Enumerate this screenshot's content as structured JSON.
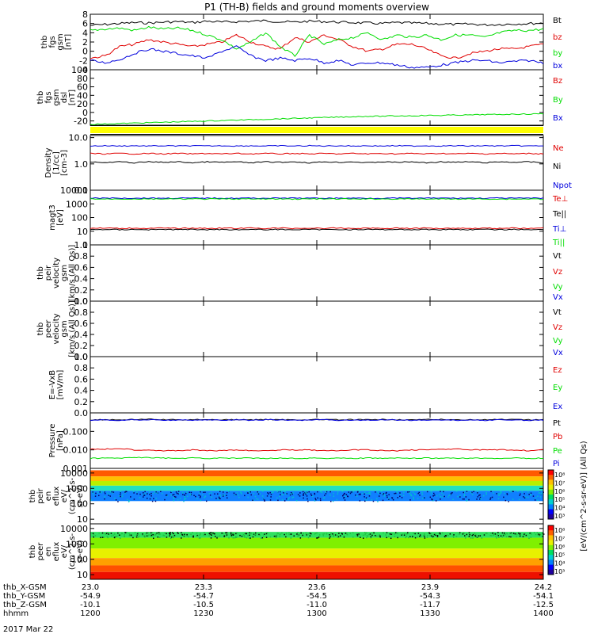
{
  "title": "P1 (TH-B) fields and ground moments overview",
  "date_label": "2017 Mar 22",
  "colors": {
    "black": "#000000",
    "red": "#e00000",
    "green": "#00dd00",
    "blue": "#0000dd",
    "yellow": "#ffff00",
    "frame": "#000000"
  },
  "chart_data": [
    {
      "id": "fgs",
      "type": "line",
      "ylabel": [
        "thb",
        "fgs",
        "gsm",
        "[nT]"
      ],
      "ylim": [
        -4,
        8
      ],
      "yticks": [
        "8",
        "6",
        "4",
        "2",
        "0",
        "-2",
        "-4"
      ],
      "ytick_values": [
        8,
        6,
        4,
        2,
        0,
        -2,
        -4
      ],
      "legend": [
        {
          "name": "Bt",
          "color": "#000000"
        },
        {
          "name": "bz",
          "color": "#e00000"
        },
        {
          "name": "by",
          "color": "#00dd00"
        },
        {
          "name": "bx",
          "color": "#0000dd"
        }
      ],
      "series": [
        {
          "name": "Bt",
          "color": "#000000",
          "values": [
            5.6,
            5.8,
            6.0,
            6.2,
            6.1,
            6.3,
            6.4,
            6.2,
            6.5,
            6.3,
            6.4,
            6.5,
            6.6,
            6.4,
            6.3,
            6.5,
            6.4,
            6.3,
            6.2,
            6.1,
            6.0,
            6.2,
            6.1,
            6.0,
            5.9,
            5.8,
            5.9,
            5.7,
            5.8,
            5.9,
            6.0,
            6.1
          ]
        },
        {
          "name": "bz",
          "color": "#e00000",
          "values": [
            -1.5,
            -1.0,
            1.0,
            1.5,
            2.5,
            2.0,
            1.5,
            1.0,
            1.5,
            2.0,
            3.5,
            2.0,
            1.0,
            0.5,
            3.0,
            2.0,
            3.5,
            2.5,
            1.0,
            0.0,
            0.5,
            1.5,
            1.5,
            0.5,
            -1.0,
            -1.5,
            -0.5,
            0.0,
            0.5,
            0.5,
            1.0,
            1.5
          ]
        },
        {
          "name": "by",
          "color": "#00dd00",
          "values": [
            4.5,
            4.8,
            5.0,
            4.5,
            5.2,
            4.8,
            5.0,
            4.5,
            3.5,
            2.5,
            0.5,
            2.0,
            4.0,
            1.0,
            -1.0,
            3.5,
            1.5,
            2.5,
            3.0,
            4.0,
            2.5,
            3.5,
            3.0,
            3.5,
            2.5,
            3.5,
            3.5,
            3.0,
            4.0,
            4.5,
            4.5,
            4.8
          ]
        },
        {
          "name": "bx",
          "color": "#0000dd",
          "values": [
            -2.0,
            -2.5,
            -1.8,
            -0.5,
            0.5,
            0.0,
            -0.5,
            -1.0,
            -1.5,
            0.0,
            1.0,
            -1.0,
            -2.0,
            -1.5,
            -2.0,
            -1.5,
            -2.5,
            -2.0,
            -3.0,
            -2.5,
            -2.5,
            -3.0,
            -3.5,
            -3.5,
            -3.0,
            -2.5,
            -2.0,
            -2.0,
            -2.5,
            -2.2,
            -2.0,
            -2.5
          ]
        }
      ]
    },
    {
      "id": "fgs-dsl",
      "type": "line",
      "ylabel": [
        "thb",
        "fgs",
        "gsm",
        "dsl",
        "[nT]"
      ],
      "ylim": [
        -30,
        100
      ],
      "yticks": [
        "100",
        "80",
        "60",
        "40",
        "20",
        "0",
        "-20"
      ],
      "ytick_values": [
        100,
        80,
        60,
        40,
        20,
        0,
        -20
      ],
      "legend": [
        {
          "name": "Bz",
          "color": "#e00000"
        },
        {
          "name": "By",
          "color": "#00dd00"
        },
        {
          "name": "Bx",
          "color": "#0000dd"
        }
      ],
      "series": [
        {
          "name": "By",
          "color": "#00dd00",
          "values": [
            -28,
            -27,
            -26,
            -25,
            -24,
            -23,
            -22,
            -21,
            -20,
            -19,
            -18,
            -17,
            -16,
            -15,
            -14,
            -13,
            -12,
            -11,
            -10,
            -9,
            -9,
            -8,
            -8,
            -7,
            -7,
            -6,
            -6,
            -5,
            -5,
            -4,
            -4,
            -3
          ]
        }
      ]
    },
    {
      "id": "density",
      "type": "line",
      "ylabel": [
        "Density",
        "[1/cc]",
        "[cm-3]"
      ],
      "yscale": "log",
      "ylim": [
        0.1,
        12
      ],
      "yticks": [
        "10.0",
        "1.0",
        "0.1"
      ],
      "ytick_values": [
        10,
        1,
        0.1
      ],
      "legend": [
        {
          "name": "Ne",
          "color": "#e00000"
        },
        {
          "name": "Ni",
          "color": "#000000"
        },
        {
          "name": "Npot",
          "color": "#0000dd"
        }
      ],
      "series": [
        {
          "name": "Npot",
          "color": "#0000dd",
          "values": [
            4.8,
            4.9,
            4.8,
            4.9,
            4.8,
            4.9,
            4.8,
            4.9,
            4.8,
            4.9,
            4.8,
            4.9,
            4.8,
            4.9,
            4.8,
            4.9,
            4.8,
            4.9,
            4.8,
            4.9,
            4.8,
            4.9,
            4.8,
            4.9,
            4.8,
            4.9,
            4.8,
            4.9,
            4.8,
            4.9,
            4.8,
            4.9
          ]
        },
        {
          "name": "Ne",
          "color": "#e00000",
          "values": [
            2.5,
            2.4,
            2.5,
            2.4,
            2.5,
            2.4,
            2.5,
            2.4,
            2.5,
            2.4,
            2.5,
            2.4,
            2.5,
            2.4,
            2.5,
            2.4,
            2.5,
            2.4,
            2.5,
            2.4,
            2.5,
            2.4,
            2.5,
            2.4,
            2.5,
            2.4,
            2.5,
            2.4,
            2.5,
            2.4,
            2.5,
            2.4
          ]
        },
        {
          "name": "Ni",
          "color": "#000000",
          "values": [
            1.2,
            1.1,
            1.2,
            1.1,
            1.2,
            1.15,
            1.2,
            1.1,
            1.2,
            1.15,
            1.2,
            1.1,
            1.2,
            1.15,
            1.2,
            1.1,
            1.2,
            1.15,
            1.2,
            1.1,
            1.2,
            1.15,
            1.2,
            1.1,
            1.2,
            1.15,
            1.2,
            1.1,
            1.2,
            1.15,
            1.2,
            1.1
          ]
        }
      ]
    },
    {
      "id": "temperature",
      "type": "line",
      "ylabel": [
        "magt3",
        "[eV]"
      ],
      "yscale": "log",
      "ylim": [
        1,
        10000
      ],
      "yticks": [
        "10000",
        "1000",
        "100",
        "10",
        "1"
      ],
      "ytick_values": [
        10000,
        1000,
        100,
        10,
        1
      ],
      "legend": [
        {
          "name": "Te⊥",
          "color": "#e00000"
        },
        {
          "name": "Te||",
          "color": "#000000"
        },
        {
          "name": "Ti⊥",
          "color": "#0000dd"
        },
        {
          "name": "Ti||",
          "color": "#00dd00"
        }
      ],
      "series": [
        {
          "name": "Ti⊥",
          "color": "#0000dd",
          "values": [
            2600,
            2650,
            2600,
            2620,
            2650,
            2600,
            2630,
            2600,
            2650,
            2620,
            2600,
            2640,
            2600,
            2620,
            2650,
            2600,
            2630,
            2600,
            2650,
            2620,
            2600,
            2640,
            2600,
            2620,
            2650,
            2600,
            2630,
            2600,
            2650,
            2620,
            2600,
            2640
          ]
        },
        {
          "name": "Ti||",
          "color": "#00dd00",
          "values": [
            2300,
            2250,
            2300,
            2280,
            2250,
            2300,
            2270,
            2300,
            2250,
            2280,
            2300,
            2260,
            2300,
            2280,
            2250,
            2300,
            2270,
            2300,
            2250,
            2280,
            2300,
            2260,
            2300,
            2280,
            2250,
            2300,
            2270,
            2300,
            2250,
            2280,
            2300,
            2260
          ]
        },
        {
          "name": "Te⊥",
          "color": "#e00000",
          "values": [
            16,
            17,
            16,
            17,
            16,
            17,
            16,
            17,
            16,
            17,
            16,
            17,
            16,
            17,
            16,
            17,
            16,
            17,
            16,
            17,
            16,
            17,
            16,
            17,
            16,
            17,
            16,
            17,
            16,
            17,
            16,
            17
          ]
        },
        {
          "name": "Te||",
          "color": "#000000",
          "values": [
            13,
            13.5,
            13,
            13.5,
            13,
            13.5,
            13,
            13.5,
            13,
            13.5,
            13,
            13.5,
            13,
            13.5,
            13,
            13.5,
            13,
            13.5,
            13,
            13.5,
            13,
            13.5,
            13,
            13.5,
            13,
            13.5,
            13,
            13.5,
            13,
            13.5,
            13,
            13.5
          ]
        }
      ]
    },
    {
      "id": "peir-velocity",
      "type": "line",
      "ylabel": [
        "thb",
        "peir",
        "velocity",
        "gsm",
        "[km/s (All Qs)]"
      ],
      "ylim": [
        0,
        1
      ],
      "yticks": [
        "1.0",
        "0.8",
        "0.6",
        "0.4",
        "0.2",
        "0.0"
      ],
      "ytick_values": [
        1,
        0.8,
        0.6,
        0.4,
        0.2,
        0
      ],
      "legend": [
        {
          "name": "Vt",
          "color": "#000000"
        },
        {
          "name": "Vz",
          "color": "#e00000"
        },
        {
          "name": "Vy",
          "color": "#00dd00"
        },
        {
          "name": "Vx",
          "color": "#0000dd"
        }
      ],
      "series": []
    },
    {
      "id": "peer-velocity",
      "type": "line",
      "ylabel": [
        "thb",
        "peer",
        "velocity",
        "gsm",
        "[km/s (All Qs)]"
      ],
      "ylim": [
        0,
        1
      ],
      "yticks": [
        "1.0",
        "0.8",
        "0.6",
        "0.4",
        "0.2",
        "0.0"
      ],
      "ytick_values": [
        1,
        0.8,
        0.6,
        0.4,
        0.2,
        0
      ],
      "legend": [
        {
          "name": "Vt",
          "color": "#000000"
        },
        {
          "name": "Vz",
          "color": "#e00000"
        },
        {
          "name": "Vy",
          "color": "#00dd00"
        },
        {
          "name": "Vx",
          "color": "#0000dd"
        }
      ],
      "series": []
    },
    {
      "id": "efield",
      "type": "line",
      "ylabel": [
        "E=-VxB",
        "[mV/m]"
      ],
      "ylim": [
        0,
        1
      ],
      "yticks": [
        "1.0",
        "0.8",
        "0.6",
        "0.4",
        "0.2",
        "0.0"
      ],
      "ytick_values": [
        1,
        0.8,
        0.6,
        0.4,
        0.2,
        0
      ],
      "legend": [
        {
          "name": "Ez",
          "color": "#e00000"
        },
        {
          "name": "Ey",
          "color": "#00dd00"
        },
        {
          "name": "Ex",
          "color": "#0000dd"
        }
      ],
      "series": []
    },
    {
      "id": "pressure",
      "type": "line",
      "ylabel": [
        "Pressure",
        "[nPa]"
      ],
      "yscale": "log",
      "ylim": [
        0.001,
        1
      ],
      "yticks": [
        "0.100",
        "0.010",
        "0.001"
      ],
      "ytick_values": [
        0.1,
        0.01,
        0.001
      ],
      "legend": [
        {
          "name": "Pt",
          "color": "#000000"
        },
        {
          "name": "Pb",
          "color": "#e00000"
        },
        {
          "name": "Pe",
          "color": "#00dd00"
        },
        {
          "name": "Pi",
          "color": "#0000dd"
        }
      ],
      "series": [
        {
          "name": "Pt",
          "color": "#000000",
          "values": [
            0.42,
            0.43,
            0.42,
            0.44,
            0.45,
            0.43,
            0.42,
            0.43,
            0.44,
            0.42,
            0.43,
            0.42,
            0.44,
            0.43,
            0.42,
            0.43,
            0.44,
            0.42,
            0.43,
            0.42,
            0.44,
            0.43,
            0.42,
            0.43,
            0.44,
            0.42,
            0.43,
            0.42,
            0.44,
            0.43,
            0.42,
            0.43
          ]
        },
        {
          "name": "Pi",
          "color": "#0000dd",
          "values": [
            0.4,
            0.41,
            0.4,
            0.42,
            0.43,
            0.41,
            0.4,
            0.41,
            0.42,
            0.4,
            0.41,
            0.4,
            0.42,
            0.41,
            0.4,
            0.41,
            0.42,
            0.4,
            0.41,
            0.4,
            0.42,
            0.41,
            0.4,
            0.41,
            0.42,
            0.4,
            0.41,
            0.4,
            0.42,
            0.41,
            0.4,
            0.41
          ]
        },
        {
          "name": "Pb",
          "color": "#e00000",
          "values": [
            0.011,
            0.011,
            0.012,
            0.01,
            0.01,
            0.009,
            0.009,
            0.01,
            0.009,
            0.009,
            0.01,
            0.009,
            0.009,
            0.01,
            0.01,
            0.01,
            0.009,
            0.009,
            0.01,
            0.01,
            0.009,
            0.009,
            0.01,
            0.01,
            0.011,
            0.011,
            0.01,
            0.01,
            0.01,
            0.01,
            0.009,
            0.01
          ]
        },
        {
          "name": "Pe",
          "color": "#00dd00",
          "values": [
            0.0035,
            0.0036,
            0.0035,
            0.004,
            0.0038,
            0.0036,
            0.0035,
            0.0036,
            0.0035,
            0.0036,
            0.0035,
            0.0036,
            0.0035,
            0.0036,
            0.0035,
            0.0036,
            0.0035,
            0.0036,
            0.0035,
            0.0036,
            0.0035,
            0.0036,
            0.0035,
            0.0036,
            0.0035,
            0.0036,
            0.0035,
            0.0036,
            0.0035,
            0.0036,
            0.0035,
            0.0036
          ]
        }
      ]
    },
    {
      "id": "peir-eflux",
      "type": "heatmap",
      "ylabel": [
        "thb",
        "peir",
        "en",
        "eflux",
        "eV/",
        "(cm^2-s-",
        "sr-eV)"
      ],
      "yscale": "log",
      "ylim": [
        5,
        20000
      ],
      "yticks": [
        "10000",
        "1000",
        "100",
        "10"
      ],
      "ytick_values": [
        10000,
        1000,
        100,
        10
      ],
      "colorbar_ticks": [
        "10⁸",
        "10⁷",
        "10⁶",
        "10⁵",
        "10⁴",
        "10³"
      ],
      "colorbar_label": "[eV/(cm^2-s-sr-eV)] (All Qs)",
      "bands": [
        {
          "ymin": 6000,
          "ymax": 15000,
          "color": "#ff5a00"
        },
        {
          "ymin": 3000,
          "ymax": 6000,
          "color": "#ffc000"
        },
        {
          "ymin": 1500,
          "ymax": 3000,
          "color": "#b8f000"
        },
        {
          "ymin": 700,
          "ymax": 1500,
          "color": "#20e0c0"
        },
        {
          "ymin": 150,
          "ymax": 700,
          "color": "#1080ff"
        }
      ]
    },
    {
      "id": "peer-eflux",
      "type": "heatmap",
      "ylabel": [
        "thb",
        "peer",
        "en",
        "eflux",
        "eV/",
        "(cm^2-s-",
        "sr-eV)"
      ],
      "yscale": "log",
      "ylim": [
        5,
        20000
      ],
      "yticks": [
        "10000",
        "1000",
        "100",
        "10"
      ],
      "ytick_values": [
        10000,
        1000,
        100,
        10
      ],
      "colorbar_ticks": [
        "10⁸",
        "10⁷",
        "10⁶",
        "10⁵",
        "10⁴",
        "10³"
      ],
      "colorbar_label": "[eV/(cm^2-s-sr-eV)] (All Qs)",
      "bands": [
        {
          "ymin": 2500,
          "ymax": 6000,
          "color": "#30e060"
        },
        {
          "ymin": 500,
          "ymax": 2500,
          "color": "#80f000"
        },
        {
          "ymin": 120,
          "ymax": 500,
          "color": "#e8f000"
        },
        {
          "ymin": 40,
          "ymax": 120,
          "color": "#ffa000"
        },
        {
          "ymin": 15,
          "ymax": 40,
          "color": "#ff5000"
        },
        {
          "ymin": 5,
          "ymax": 15,
          "color": "#ee1000"
        }
      ]
    }
  ],
  "xaxis": {
    "ticks": [
      23.0,
      23.3,
      23.6,
      23.9,
      24.2
    ],
    "rows": [
      {
        "label": "thb_X-GSM",
        "values": [
          "23.0",
          "23.3",
          "23.6",
          "23.9",
          "24.2"
        ]
      },
      {
        "label": "thb_Y-GSM",
        "values": [
          "-54.9",
          "-54.7",
          "-54.5",
          "-54.3",
          "-54.1"
        ]
      },
      {
        "label": "thb_Z-GSM",
        "values": [
          "-10.1",
          "-10.5",
          "-11.0",
          "-11.7",
          "-12.5"
        ]
      },
      {
        "label": "hhmm",
        "values": [
          "1200",
          "1230",
          "1300",
          "1330",
          "1400"
        ]
      }
    ]
  }
}
